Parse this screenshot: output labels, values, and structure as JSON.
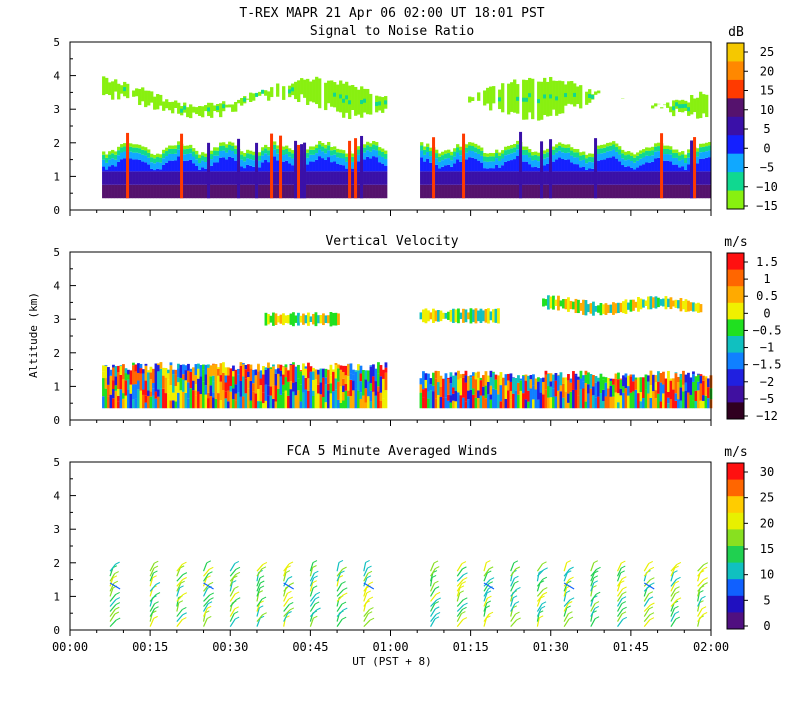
{
  "figure": {
    "title": "T-REX  MAPR 21 Apr 06  02:00 UT  18:01  PST",
    "xlabel": "UT  (PST + 8)",
    "ylabel": "Altitude (km)",
    "x_ticks": [
      "00:00",
      "00:15",
      "00:30",
      "00:45",
      "01:00",
      "01:15",
      "01:30",
      "01:45",
      "02:00"
    ]
  },
  "chart_data": [
    {
      "type": "heatmap",
      "id": "snr",
      "title": "Signal to Noise Ratio",
      "units": "dB",
      "xlim": [
        0,
        120
      ],
      "ylim": [
        0,
        5
      ],
      "y_ticks": [
        "0",
        "1",
        "2",
        "3",
        "4",
        "5"
      ],
      "colorbar": {
        "labels": [
          "25",
          "20",
          "15",
          "10",
          "5",
          "0",
          "−5",
          "−10",
          "−15"
        ],
        "colors": [
          "#f5c800",
          "#ff8800",
          "#ff3a00",
          "#55126d",
          "#3a10a8",
          "#1420ff",
          "#10a8ff",
          "#10d890",
          "#88f010"
        ]
      },
      "data_gap_minutes": [
        59,
        65
      ],
      "layers": [
        {
          "label": "low-level echo base (km)",
          "value": 0.35
        },
        {
          "label": "strong echo top (km)",
          "value": 1.0
        },
        {
          "label": "boundary layer echo top (km)",
          "value": 1.85
        },
        {
          "label": "upper cloud layer (km)",
          "range": [
            2.5,
            4.1
          ]
        }
      ]
    },
    {
      "type": "heatmap",
      "id": "vv",
      "title": "Vertical Velocity",
      "units": "m/s",
      "xlim": [
        0,
        120
      ],
      "ylim": [
        0,
        5
      ],
      "y_ticks": [
        "0",
        "1",
        "2",
        "3",
        "4",
        "5"
      ],
      "colorbar": {
        "labels": [
          "1.5",
          "1",
          "0.5",
          "0",
          "−0.5",
          "−1",
          "−1.5",
          "−2",
          "−5",
          "−12"
        ],
        "colors": [
          "#ff1010",
          "#ff6600",
          "#ffaa00",
          "#f0f000",
          "#20e020",
          "#10c0c0",
          "#1080ff",
          "#2020e0",
          "#4010a0",
          "#300020"
        ]
      },
      "data_gap_minutes": [
        59,
        65
      ],
      "layers": [
        {
          "label": "boundary layer echo top (km)",
          "value": 1.6
        },
        {
          "label": "upper cloud layer (km)",
          "range": [
            2.8,
            3.6
          ]
        }
      ]
    },
    {
      "type": "scatter",
      "id": "winds",
      "title": "FCA 5 Minute Averaged Winds",
      "units": "m/s",
      "xlim": [
        0,
        120
      ],
      "ylim": [
        0,
        5
      ],
      "y_ticks": [
        "0",
        "1",
        "2",
        "3",
        "4",
        "5"
      ],
      "colorbar": {
        "labels": [
          "30",
          "25",
          "20",
          "15",
          "10",
          "5",
          "0"
        ],
        "colors": [
          "#ff1010",
          "#ff6600",
          "#ffcc00",
          "#e8f000",
          "#88e020",
          "#20d050",
          "#10c0c0",
          "#1060ff",
          "#2010c0",
          "#501080"
        ]
      },
      "profile_times_minutes": [
        7.5,
        15,
        20,
        25,
        30,
        35,
        40,
        45,
        50,
        55,
        67.5,
        72.5,
        77.5,
        82.5,
        87.5,
        92.5,
        97.5,
        102.5,
        107.5,
        112.5,
        117.5
      ]
    }
  ]
}
